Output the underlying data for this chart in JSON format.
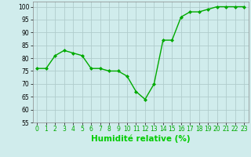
{
  "x": [
    0,
    1,
    2,
    3,
    4,
    5,
    6,
    7,
    8,
    9,
    10,
    11,
    12,
    13,
    14,
    15,
    16,
    17,
    18,
    19,
    20,
    21,
    22,
    23
  ],
  "y": [
    76,
    76,
    81,
    83,
    82,
    81,
    76,
    76,
    75,
    75,
    73,
    67,
    64,
    70,
    87,
    87,
    96,
    98,
    98,
    99,
    100,
    100,
    100,
    100
  ],
  "line_color": "#00aa00",
  "marker_color": "#00aa00",
  "bg_color": "#d0ecec",
  "grid_color": "#b0cccc",
  "xlabel": "Humidité relative (%)",
  "xlabel_color": "#00cc00",
  "ylim": [
    55,
    102
  ],
  "xlim": [
    -0.5,
    23.5
  ],
  "yticks": [
    55,
    60,
    65,
    70,
    75,
    80,
    85,
    90,
    95,
    100
  ],
  "xticks": [
    0,
    1,
    2,
    3,
    4,
    5,
    6,
    7,
    8,
    9,
    10,
    11,
    12,
    13,
    14,
    15,
    16,
    17,
    18,
    19,
    20,
    21,
    22,
    23
  ],
  "tick_label_size": 5.5,
  "xlabel_size": 7.5
}
